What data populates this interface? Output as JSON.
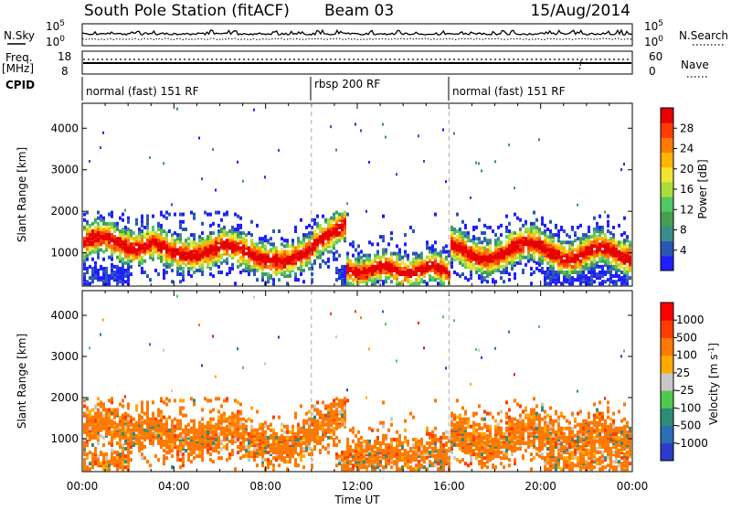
{
  "header": {
    "station": "South Pole Station (fitACF)",
    "beam": "Beam 03",
    "date": "15/Aug/2014"
  },
  "noise_panel": {
    "left_label": "N.Sky",
    "right_label": "N.Search",
    "left_ticks": [
      "10^5",
      "10^0"
    ],
    "right_ticks": [
      "10^5",
      "10^0"
    ]
  },
  "freq_panel": {
    "left_label_line1": "Freq.",
    "left_label_line2": "[MHz]",
    "right_label": "Nave",
    "left_ticks": [
      "18",
      "8"
    ],
    "right_ticks": [
      "60",
      "0"
    ]
  },
  "cpid": {
    "label": "CPID",
    "segments": [
      {
        "name": "normal (fast) 151 RF",
        "start": 0,
        "end": 10
      },
      {
        "name": "rbsp 200 RF",
        "start": 10,
        "end": 16
      },
      {
        "name": "normal (fast) 151 RF",
        "start": 16,
        "end": 24
      }
    ]
  },
  "chart_data": [
    {
      "type": "heatmap",
      "quantity": "Power",
      "ylabel": "Slant Range [km]",
      "xlabel": "Time UT",
      "xlim": [
        0,
        24
      ],
      "ylim": [
        200,
        4600
      ],
      "x_ticks": [
        "00:00",
        "04:00",
        "08:00",
        "12:00",
        "16:00",
        "20:00",
        "00:00"
      ],
      "y_ticks": [
        "1000",
        "2000",
        "3000",
        "4000"
      ],
      "colorbar": {
        "label": "Power [dB]",
        "ticks": [
          "28",
          "24",
          "20",
          "16",
          "12",
          "8",
          "4"
        ],
        "range": [
          0,
          30
        ],
        "colors": [
          "#1e1eff",
          "#2a55b4",
          "#3c8c8c",
          "#46a050",
          "#50c864",
          "#aadc3c",
          "#f0e632",
          "#ffb400",
          "#ff7800",
          "#ff3c00",
          "#e60000"
        ]
      }
    },
    {
      "type": "heatmap",
      "quantity": "Velocity",
      "ylabel": "Slant Range [km]",
      "xlabel": "Time UT",
      "xlim": [
        0,
        24
      ],
      "ylim": [
        200,
        4600
      ],
      "x_ticks": [
        "00:00",
        "04:00",
        "08:00",
        "12:00",
        "16:00",
        "20:00",
        "00:00"
      ],
      "y_ticks": [
        "1000",
        "2000",
        "3000",
        "4000"
      ],
      "colorbar": {
        "label": "Velocity [m s^-1]",
        "ticks": [
          "1000",
          "500",
          "100",
          "25",
          "-25",
          "-100",
          "-500",
          "-1000"
        ],
        "range": [
          -1000,
          1000
        ],
        "colors": [
          "#2a3cc8",
          "#2a6eb4",
          "#2e8c78",
          "#50c850",
          "#c8c8c8",
          "#ffaa00",
          "#ff7800",
          "#ff3c00",
          "#ff0000"
        ]
      }
    }
  ],
  "xaxis_label": "Time UT"
}
